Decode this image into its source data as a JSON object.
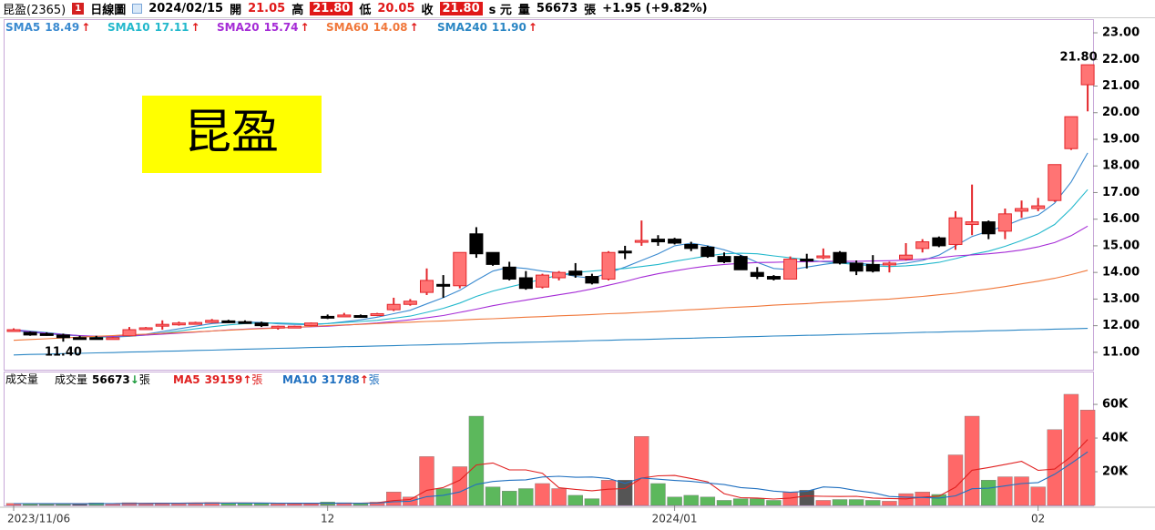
{
  "header": {
    "name": "昆盈(2365)",
    "badge": "1",
    "period": "日線圖",
    "date": "2024/02/15",
    "open_label": "開",
    "open": "21.05",
    "high_label": "高",
    "high": "21.80",
    "low_label": "低",
    "low": "20.05",
    "close_label": "收",
    "close": "21.80",
    "currency": "s 元",
    "volume_label": "量",
    "unit": "張",
    "change": "+1.95 (+9.82%)"
  },
  "logo": "昆盈",
  "chart_data": [
    {
      "type": "candlestick",
      "up_color": "#ff7474",
      "up_edge": "#e3262b",
      "down_color": "#000000",
      "open": [
        11.8,
        11.75,
        11.7,
        11.65,
        11.55,
        11.55,
        11.52,
        11.62,
        11.88,
        12.02,
        12.05,
        12.1,
        12.12,
        12.18,
        12.15,
        12.1,
        11.92,
        11.95,
        12.0,
        12.35,
        12.38,
        12.38,
        12.38,
        12.6,
        12.8,
        13.25,
        13.55,
        13.5,
        15.45,
        14.75,
        14.2,
        13.8,
        13.45,
        13.8,
        14.05,
        13.85,
        13.75,
        14.8,
        15.15,
        15.25,
        15.25,
        15.05,
        14.95,
        14.6,
        14.6,
        14.0,
        13.85,
        13.75,
        14.5,
        14.55,
        14.75,
        14.35,
        14.3,
        14.3,
        14.5,
        14.9,
        15.3,
        15.05,
        15.8,
        15.9,
        15.55,
        16.3,
        16.4,
        16.7,
        18.65,
        21.05
      ],
      "high": [
        11.9,
        11.78,
        11.75,
        11.7,
        11.62,
        11.62,
        11.58,
        11.95,
        11.95,
        12.2,
        12.15,
        12.15,
        12.25,
        12.22,
        12.2,
        12.15,
        12.0,
        12.0,
        12.12,
        12.42,
        12.48,
        12.42,
        12.48,
        13.05,
        13.0,
        14.15,
        13.9,
        14.75,
        15.7,
        14.75,
        14.4,
        14.05,
        13.95,
        14.05,
        14.35,
        13.95,
        14.8,
        15.0,
        15.95,
        15.4,
        15.3,
        15.15,
        15.0,
        14.75,
        14.65,
        14.2,
        13.9,
        14.6,
        14.7,
        14.9,
        14.8,
        14.45,
        14.65,
        14.4,
        15.1,
        15.25,
        15.35,
        16.3,
        17.3,
        15.95,
        16.4,
        16.7,
        16.8,
        18.05,
        19.85,
        21.8
      ],
      "low": [
        11.8,
        11.62,
        11.62,
        11.4,
        11.5,
        11.48,
        11.5,
        11.6,
        11.85,
        11.85,
        12.0,
        12.05,
        12.1,
        12.1,
        12.1,
        11.95,
        11.85,
        11.92,
        11.98,
        12.25,
        12.35,
        12.3,
        12.36,
        12.55,
        12.75,
        13.15,
        13.05,
        13.4,
        14.55,
        14.25,
        13.7,
        13.35,
        13.4,
        13.7,
        13.8,
        13.55,
        13.7,
        14.5,
        15.0,
        15.0,
        15.05,
        14.8,
        14.55,
        14.35,
        14.1,
        13.75,
        13.7,
        13.75,
        14.15,
        14.5,
        14.3,
        13.9,
        14.0,
        14.0,
        14.45,
        14.75,
        14.95,
        14.85,
        15.4,
        15.25,
        15.25,
        16.05,
        16.3,
        16.65,
        18.6,
        20.05
      ],
      "close": [
        11.85,
        11.65,
        11.68,
        11.55,
        11.55,
        11.52,
        11.55,
        11.85,
        11.92,
        12.05,
        12.1,
        12.12,
        12.2,
        12.15,
        12.12,
        12.0,
        11.98,
        11.98,
        12.1,
        12.3,
        12.4,
        12.32,
        12.45,
        12.8,
        12.92,
        13.7,
        13.5,
        14.75,
        14.7,
        14.3,
        13.75,
        13.4,
        13.9,
        14.0,
        13.9,
        13.6,
        14.75,
        14.8,
        15.2,
        15.15,
        15.1,
        14.9,
        14.6,
        14.4,
        14.1,
        13.85,
        13.75,
        14.5,
        14.5,
        14.62,
        14.35,
        14.05,
        14.05,
        14.35,
        14.65,
        15.15,
        15.0,
        16.05,
        15.9,
        15.45,
        16.2,
        16.4,
        16.5,
        18.05,
        19.85,
        21.8
      ],
      "series": [
        {
          "name": "SMA5",
          "color": "#3a8ad0",
          "legend_value": "18.49",
          "arrow": "↑",
          "arrow_color": "#e01818",
          "values": [
            11.82,
            11.76,
            11.7,
            11.65,
            11.62,
            11.6,
            11.57,
            11.62,
            11.68,
            11.78,
            11.88,
            11.98,
            12.08,
            12.12,
            12.14,
            12.12,
            12.07,
            12.05,
            12.04,
            12.08,
            12.15,
            12.22,
            12.32,
            12.45,
            12.58,
            12.82,
            13.05,
            13.33,
            13.7,
            14.05,
            14.2,
            14.15,
            14.05,
            13.98,
            13.85,
            13.78,
            13.98,
            14.2,
            14.45,
            14.7,
            15.0,
            15.1,
            15.0,
            14.85,
            14.65,
            14.38,
            14.15,
            14.1,
            14.2,
            14.3,
            14.38,
            14.35,
            14.3,
            14.28,
            14.35,
            14.45,
            14.65,
            15.0,
            15.35,
            15.55,
            15.75,
            16.0,
            16.15,
            16.6,
            17.4,
            18.49
          ]
        },
        {
          "name": "SMA10",
          "color": "#22b8cc",
          "legend_value": "17.11",
          "arrow": "↑",
          "arrow_color": "#e01818",
          "values": [
            11.85,
            11.8,
            11.74,
            11.68,
            11.62,
            11.58,
            11.57,
            11.6,
            11.65,
            11.72,
            11.8,
            11.88,
            11.96,
            12.03,
            12.08,
            12.1,
            12.1,
            12.08,
            12.06,
            12.08,
            12.12,
            12.16,
            12.2,
            12.28,
            12.36,
            12.5,
            12.65,
            12.85,
            13.1,
            13.3,
            13.45,
            13.6,
            13.75,
            13.9,
            14.0,
            14.05,
            14.1,
            14.15,
            14.22,
            14.3,
            14.42,
            14.52,
            14.62,
            14.7,
            14.72,
            14.7,
            14.62,
            14.55,
            14.48,
            14.4,
            14.35,
            14.3,
            14.25,
            14.22,
            14.25,
            14.3,
            14.38,
            14.52,
            14.68,
            14.8,
            14.98,
            15.2,
            15.45,
            15.8,
            16.4,
            17.11
          ]
        },
        {
          "name": "SMA20",
          "color": "#a52bd6",
          "legend_value": "15.74",
          "arrow": "↑",
          "arrow_color": "#e01818",
          "values": [
            11.85,
            11.78,
            11.72,
            11.67,
            11.63,
            11.6,
            11.6,
            11.62,
            11.65,
            11.68,
            11.72,
            11.76,
            11.8,
            11.84,
            11.87,
            11.9,
            11.92,
            11.94,
            11.96,
            11.98,
            12.02,
            12.06,
            12.1,
            12.16,
            12.22,
            12.3,
            12.38,
            12.5,
            12.62,
            12.75,
            12.86,
            12.96,
            13.06,
            13.16,
            13.26,
            13.38,
            13.52,
            13.66,
            13.82,
            13.95,
            14.06,
            14.16,
            14.24,
            14.3,
            14.34,
            14.37,
            14.38,
            14.4,
            14.4,
            14.42,
            14.42,
            14.42,
            14.43,
            14.44,
            14.46,
            14.5,
            14.55,
            14.62,
            14.66,
            14.7,
            14.76,
            14.84,
            14.96,
            15.12,
            15.38,
            15.74
          ]
        },
        {
          "name": "SMA60",
          "color": "#f0773a",
          "legend_value": "14.08",
          "arrow": "↑",
          "arrow_color": "#e01818",
          "values": [
            11.45,
            11.48,
            11.51,
            11.54,
            11.57,
            11.6,
            11.63,
            11.66,
            11.68,
            11.71,
            11.74,
            11.77,
            11.8,
            11.83,
            11.86,
            11.89,
            11.91,
            11.94,
            11.97,
            12.0,
            12.03,
            12.05,
            12.08,
            12.11,
            12.13,
            12.16,
            12.18,
            12.21,
            12.24,
            12.26,
            12.29,
            12.32,
            12.34,
            12.37,
            12.39,
            12.42,
            12.45,
            12.47,
            12.5,
            12.53,
            12.57,
            12.6,
            12.63,
            12.67,
            12.7,
            12.73,
            12.77,
            12.8,
            12.83,
            12.87,
            12.9,
            12.93,
            12.97,
            13.0,
            13.05,
            13.1,
            13.16,
            13.22,
            13.3,
            13.38,
            13.47,
            13.57,
            13.67,
            13.78,
            13.92,
            14.08
          ]
        },
        {
          "name": "SMA240",
          "color": "#2a86c4",
          "legend_value": "11.90",
          "arrow": "↑",
          "arrow_color": "#e01818",
          "values": [
            10.9,
            10.92,
            10.93,
            10.95,
            10.96,
            10.98,
            10.99,
            11.01,
            11.02,
            11.04,
            11.05,
            11.07,
            11.08,
            11.1,
            11.12,
            11.13,
            11.15,
            11.16,
            11.18,
            11.19,
            11.21,
            11.22,
            11.24,
            11.25,
            11.27,
            11.28,
            11.3,
            11.31,
            11.33,
            11.35,
            11.36,
            11.38,
            11.39,
            11.41,
            11.42,
            11.44,
            11.45,
            11.47,
            11.48,
            11.5,
            11.52,
            11.53,
            11.55,
            11.56,
            11.58,
            11.59,
            11.61,
            11.62,
            11.64,
            11.65,
            11.67,
            11.68,
            11.7,
            11.71,
            11.73,
            11.75,
            11.76,
            11.78,
            11.79,
            11.81,
            11.82,
            11.84,
            11.85,
            11.87,
            11.88,
            11.9
          ]
        }
      ],
      "annotations": [
        {
          "value": 11.4,
          "label": "11.40"
        },
        {
          "value": 21.8,
          "label": "21.80"
        }
      ],
      "ylim": [
        10.38,
        23.48
      ],
      "yticks": [
        {
          "value": 11,
          "label": "11.00"
        },
        {
          "value": 12,
          "label": "12.00"
        },
        {
          "value": 13,
          "label": "13.00"
        },
        {
          "value": 14,
          "label": "14.00"
        },
        {
          "value": 15,
          "label": "15.00"
        },
        {
          "value": 16,
          "label": "16.00"
        },
        {
          "value": 17,
          "label": "17.00"
        },
        {
          "value": 18,
          "label": "18.00"
        },
        {
          "value": 19,
          "label": "19.00"
        },
        {
          "value": 20,
          "label": "20.00"
        },
        {
          "value": 21,
          "label": "21.00"
        },
        {
          "value": 22,
          "label": "22.00"
        },
        {
          "value": 23,
          "label": "23.00"
        }
      ]
    },
    {
      "type": "bar",
      "title": "成交量",
      "name": "成交量",
      "arrow": "↓",
      "arrow_color": "#1a9a3a",
      "unit": "張",
      "colors": {
        "up": "#ff6868",
        "down": "#5cb85c",
        "flat": "#555555"
      },
      "categories": [
        "2023/11/06",
        null,
        null,
        null,
        null,
        null,
        null,
        null,
        null,
        null,
        null,
        null,
        null,
        null,
        null,
        null,
        null,
        null,
        null,
        "12",
        null,
        null,
        null,
        null,
        null,
        null,
        null,
        null,
        null,
        null,
        null,
        null,
        null,
        null,
        null,
        null,
        null,
        null,
        null,
        null,
        "2024/01",
        null,
        null,
        null,
        null,
        null,
        null,
        null,
        null,
        null,
        null,
        null,
        null,
        null,
        null,
        null,
        null,
        null,
        null,
        null,
        null,
        null,
        "02",
        null,
        null,
        null
      ],
      "values": [
        1200,
        1000,
        900,
        1100,
        800,
        1500,
        1000,
        1600,
        1200,
        1500,
        1400,
        1500,
        1700,
        1400,
        1300,
        1100,
        1000,
        900,
        1200,
        2000,
        1600,
        1100,
        1900,
        8000,
        5000,
        29000,
        10000,
        23000,
        53000,
        11000,
        8500,
        10000,
        13000,
        10000,
        6000,
        4000,
        15000,
        15000,
        41000,
        13000,
        5000,
        6000,
        5000,
        3000,
        4000,
        4000,
        3000,
        8000,
        9000,
        3000,
        3500,
        3500,
        3000,
        2500,
        7000,
        8000,
        6500,
        30000,
        53000,
        15000,
        17000,
        17000,
        11000,
        45000,
        66000,
        56673
      ],
      "series": [
        {
          "name": "MA5",
          "color": "#e02020",
          "arrow": "↑",
          "arrow_color": "#e01818",
          "unit": "張",
          "values": [
            1100,
            1050,
            1000,
            1000,
            1000,
            1060,
            1060,
            1200,
            1220,
            1360,
            1340,
            1440,
            1460,
            1460,
            1460,
            1400,
            1300,
            1140,
            1100,
            1240,
            1340,
            1360,
            1560,
            2840,
            3520,
            9000,
            10600,
            15000,
            24000,
            25200,
            21100,
            21100,
            19100,
            10500,
            9500,
            8700,
            9600,
            10000,
            16200,
            17600,
            17800,
            16000,
            14000,
            7000,
            4600,
            4400,
            3800,
            4400,
            5600,
            5400,
            5300,
            5400,
            4400,
            4100,
            3900,
            4900,
            5500,
            10800,
            20900,
            22500,
            24300,
            26200,
            20800,
            21600,
            29000,
            39159
          ]
        },
        {
          "name": "MA10",
          "color": "#2070c0",
          "arrow": "↑",
          "arrow_color": "#e01818",
          "unit": "張",
          "values": [
            1100,
            1080,
            1050,
            1030,
            1000,
            1030,
            1050,
            1080,
            1110,
            1180,
            1220,
            1250,
            1330,
            1330,
            1410,
            1380,
            1370,
            1300,
            1280,
            1300,
            1320,
            1250,
            1350,
            2140,
            2500,
            5200,
            6000,
            8000,
            12500,
            14200,
            14900,
            15200,
            16900,
            17300,
            16700,
            16900,
            16000,
            13100,
            16300,
            15600,
            14800,
            14300,
            13300,
            12400,
            10600,
            9900,
            8500,
            7800,
            8400,
            11000,
            10500,
            8800,
            7500,
            5300,
            4900,
            4700,
            4400,
            5700,
            9900,
            10200,
            11600,
            13000,
            13600,
            18500,
            25000,
            31788
          ]
        }
      ],
      "ylim": [
        0,
        79500
      ],
      "yticks": [
        {
          "value": 20000,
          "label": "20K"
        },
        {
          "value": 40000,
          "label": "40K"
        },
        {
          "value": 60000,
          "label": "60K"
        }
      ]
    }
  ]
}
